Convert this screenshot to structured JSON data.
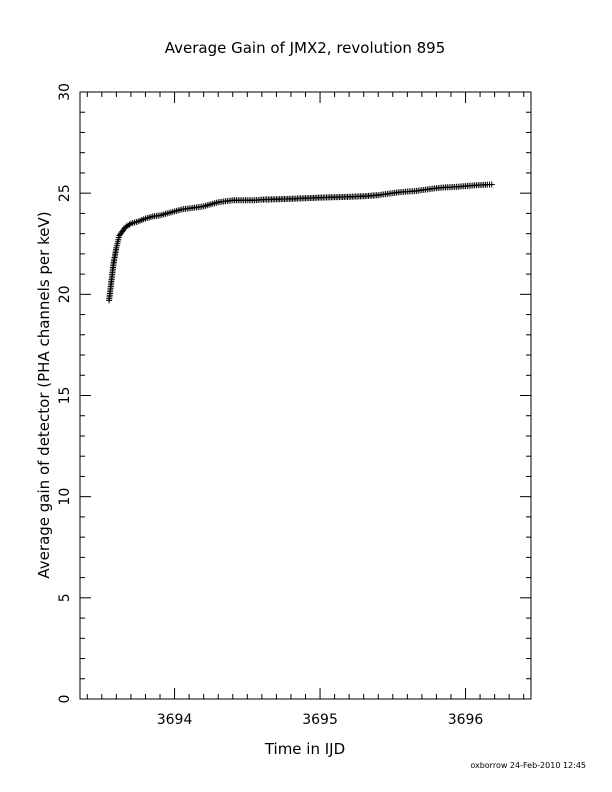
{
  "chart_data": {
    "type": "scatter",
    "title": "Average Gain of JMX2, revolution 895",
    "xlabel": "Time in IJD",
    "ylabel": "Average gain of detector (PHA channels per keV)",
    "xlim": [
      3693.35,
      3696.45
    ],
    "ylim": [
      0,
      30
    ],
    "xticks": [
      3694,
      3695,
      3696
    ],
    "xtick_labels": [
      "3694",
      "3695",
      "3696"
    ],
    "yticks": [
      0,
      5,
      10,
      15,
      20,
      25,
      30
    ],
    "ytick_labels": [
      "0",
      "5",
      "10",
      "15",
      "20",
      "25",
      "30"
    ],
    "grid": false,
    "marker": "+",
    "color": "#000000",
    "series": [
      {
        "x": [
          3693.55,
          3693.56,
          3693.57,
          3693.58,
          3693.59,
          3693.6,
          3693.61,
          3693.62,
          3693.64,
          3693.66,
          3693.68,
          3693.7,
          3693.75,
          3693.8,
          3693.85,
          3693.9,
          3693.95,
          3694.0,
          3694.05,
          3694.1,
          3694.15,
          3694.2,
          3694.25,
          3694.3,
          3694.35,
          3694.4,
          3694.45,
          3694.5,
          3694.55,
          3694.6,
          3694.7,
          3694.8,
          3694.9,
          3695.0,
          3695.1,
          3695.2,
          3695.3,
          3695.4,
          3695.45,
          3695.5,
          3695.55,
          3695.6,
          3695.65,
          3695.7,
          3695.75,
          3695.8,
          3695.85,
          3695.9,
          3695.95,
          3696.0,
          3696.05,
          3696.1,
          3696.15,
          3696.18
        ],
        "y": [
          19.7,
          20.3,
          20.9,
          21.5,
          21.9,
          22.3,
          22.6,
          22.9,
          23.1,
          23.3,
          23.4,
          23.5,
          23.6,
          23.75,
          23.85,
          23.9,
          24.0,
          24.1,
          24.2,
          24.25,
          24.3,
          24.35,
          24.45,
          24.55,
          24.6,
          24.65,
          24.65,
          24.65,
          24.65,
          24.68,
          24.7,
          24.72,
          24.75,
          24.78,
          24.8,
          24.82,
          24.85,
          24.9,
          24.95,
          25.0,
          25.05,
          25.08,
          25.1,
          25.15,
          25.2,
          25.25,
          25.28,
          25.3,
          25.32,
          25.35,
          25.38,
          25.4,
          25.42,
          25.43
        ]
      }
    ]
  },
  "footer": "oxborrow 24-Feb-2010 12:45"
}
